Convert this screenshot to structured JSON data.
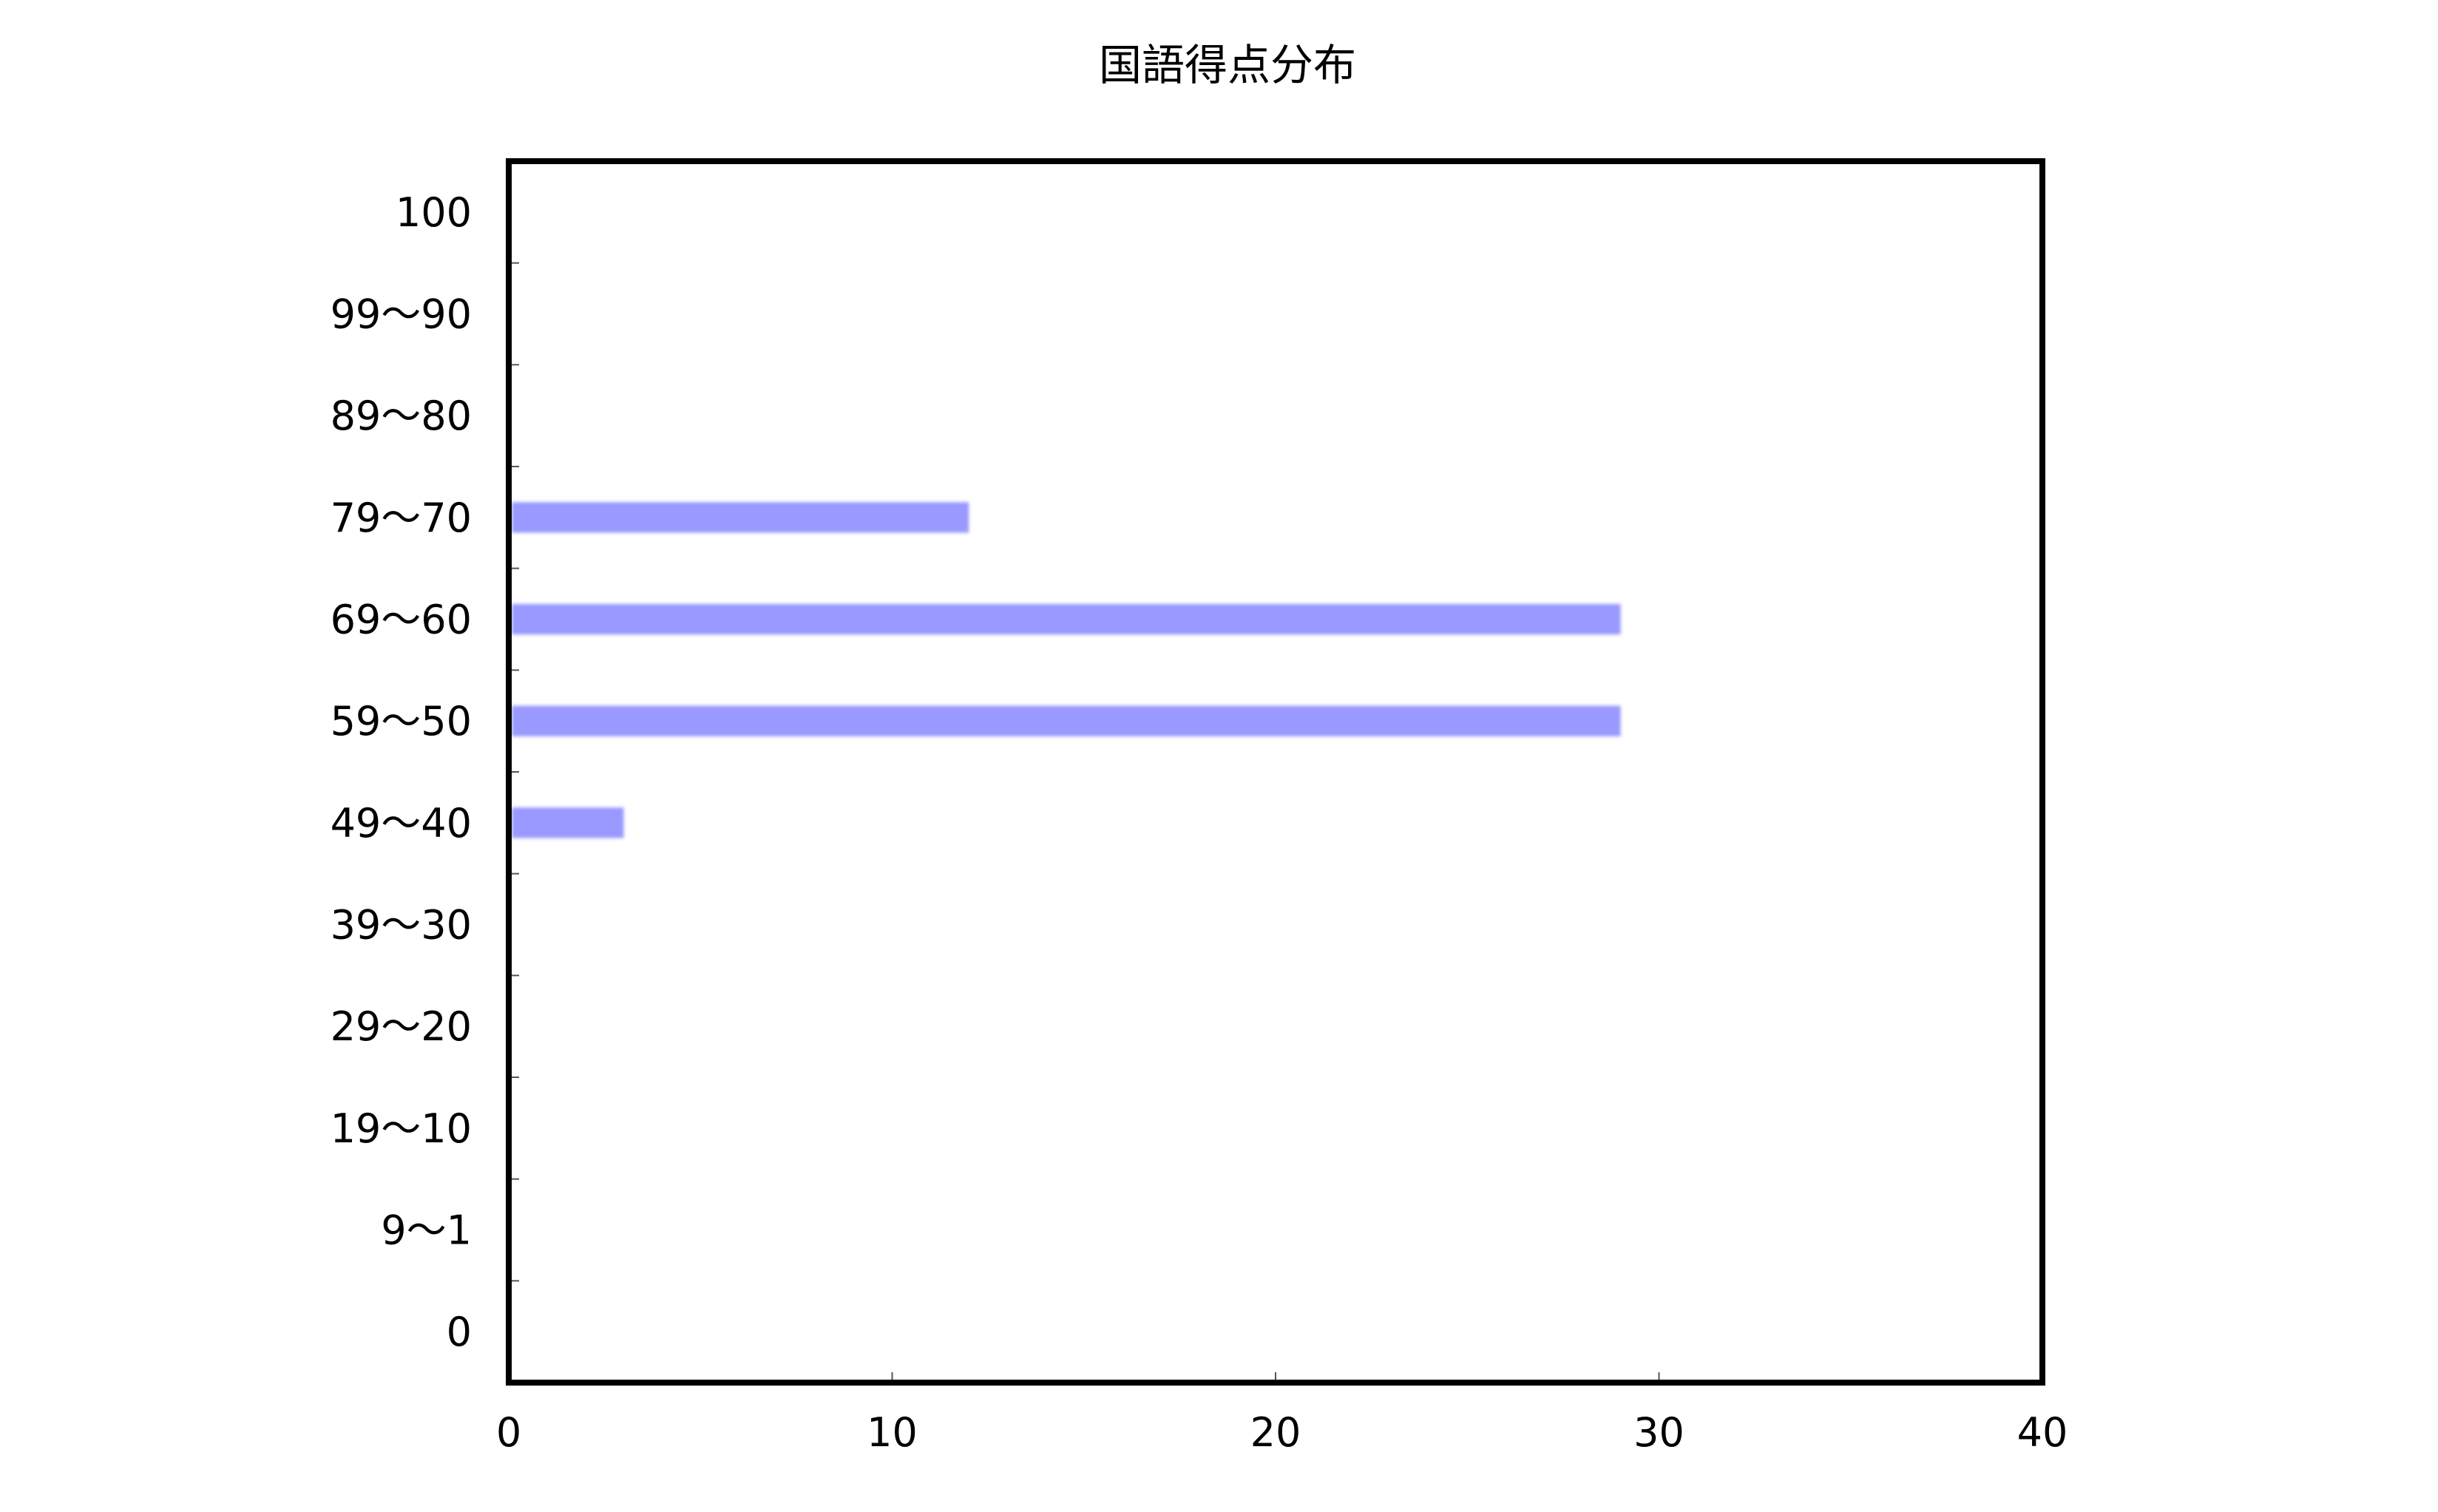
{
  "chart_data": {
    "type": "bar",
    "orientation": "horizontal",
    "title": "国語得点分布",
    "xlabel": "",
    "ylabel": "",
    "categories": [
      "100",
      "99〜90",
      "89〜80",
      "79〜70",
      "69〜60",
      "59〜50",
      "49〜40",
      "39〜30",
      "29〜20",
      "19〜10",
      "9〜1",
      "0"
    ],
    "values": [
      0,
      0,
      0,
      12,
      29,
      29,
      3,
      0,
      0,
      0,
      0,
      0
    ],
    "xlim": [
      0,
      40
    ],
    "xticks": [
      0,
      10,
      20,
      30,
      40
    ],
    "grid": false,
    "legend": "none",
    "colors": {
      "bar": "#9999ff",
      "frame": "#000000",
      "background": "#ffffff"
    }
  }
}
